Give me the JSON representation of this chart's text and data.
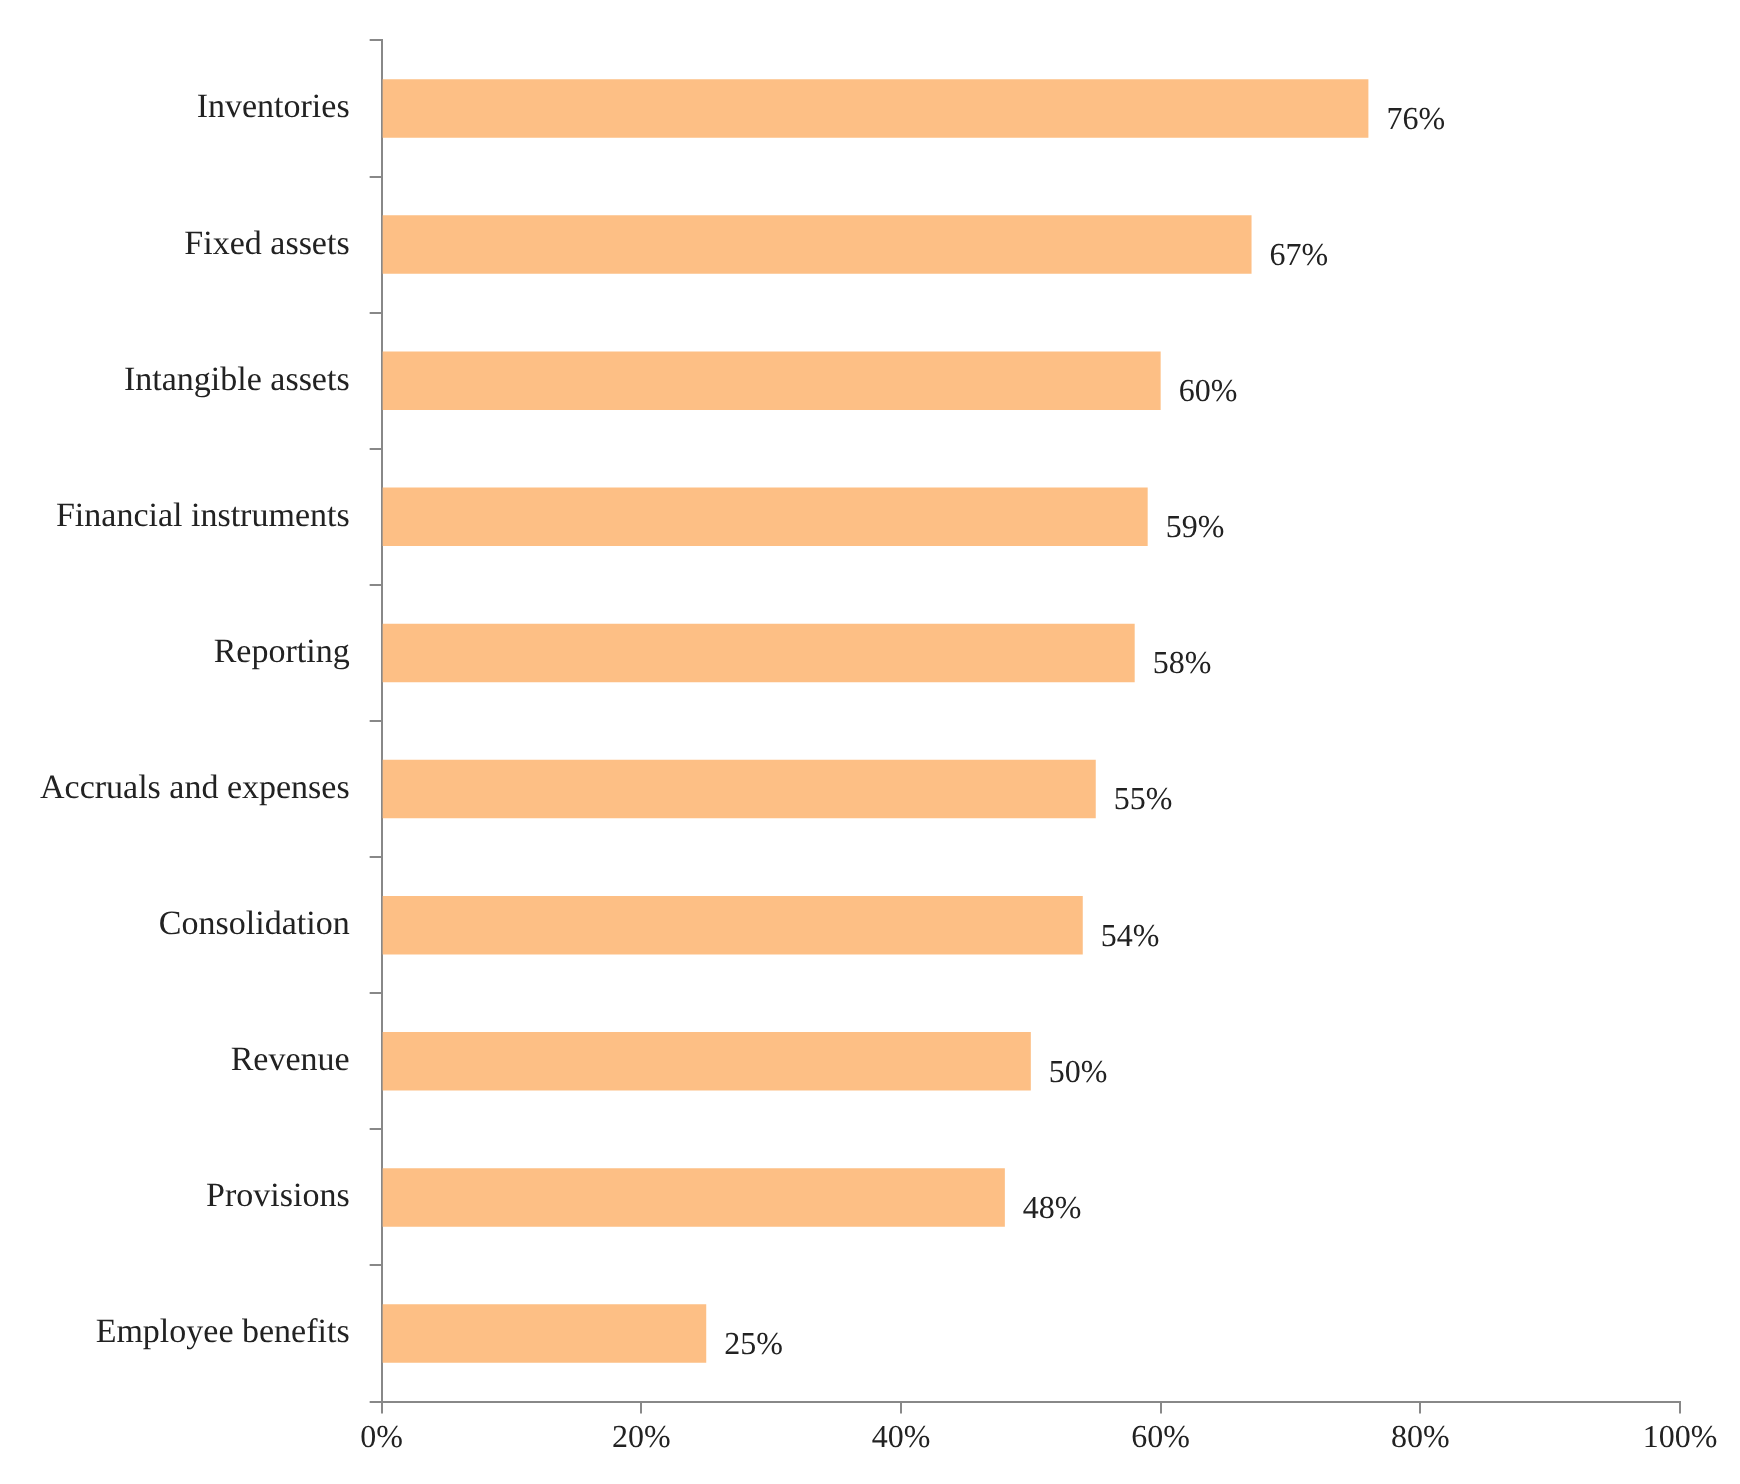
{
  "chart_data": {
    "type": "bar",
    "orientation": "horizontal",
    "categories": [
      "Inventories",
      "Fixed assets",
      "Intangible assets",
      "Financial instruments",
      "Reporting",
      "Accruals and expenses",
      "Consolidation",
      "Revenue",
      "Provisions",
      "Employee benefits"
    ],
    "values": [
      76,
      67,
      60,
      59,
      58,
      55,
      54,
      50,
      48,
      25
    ],
    "value_labels": [
      "76%",
      "67%",
      "60%",
      "59%",
      "58%",
      "55%",
      "54%",
      "50%",
      "48%",
      "25%"
    ],
    "color": "#fdbf85",
    "xlim": [
      0,
      100
    ],
    "xticks": [
      {
        "value": 0,
        "label": "0%"
      },
      {
        "value": 20,
        "label": "20%"
      },
      {
        "value": 40,
        "label": "40%"
      },
      {
        "value": 60,
        "label": "60%"
      },
      {
        "value": 80,
        "label": "80%"
      },
      {
        "value": 100,
        "label": "100%"
      }
    ],
    "grid": false,
    "legend": false
  }
}
